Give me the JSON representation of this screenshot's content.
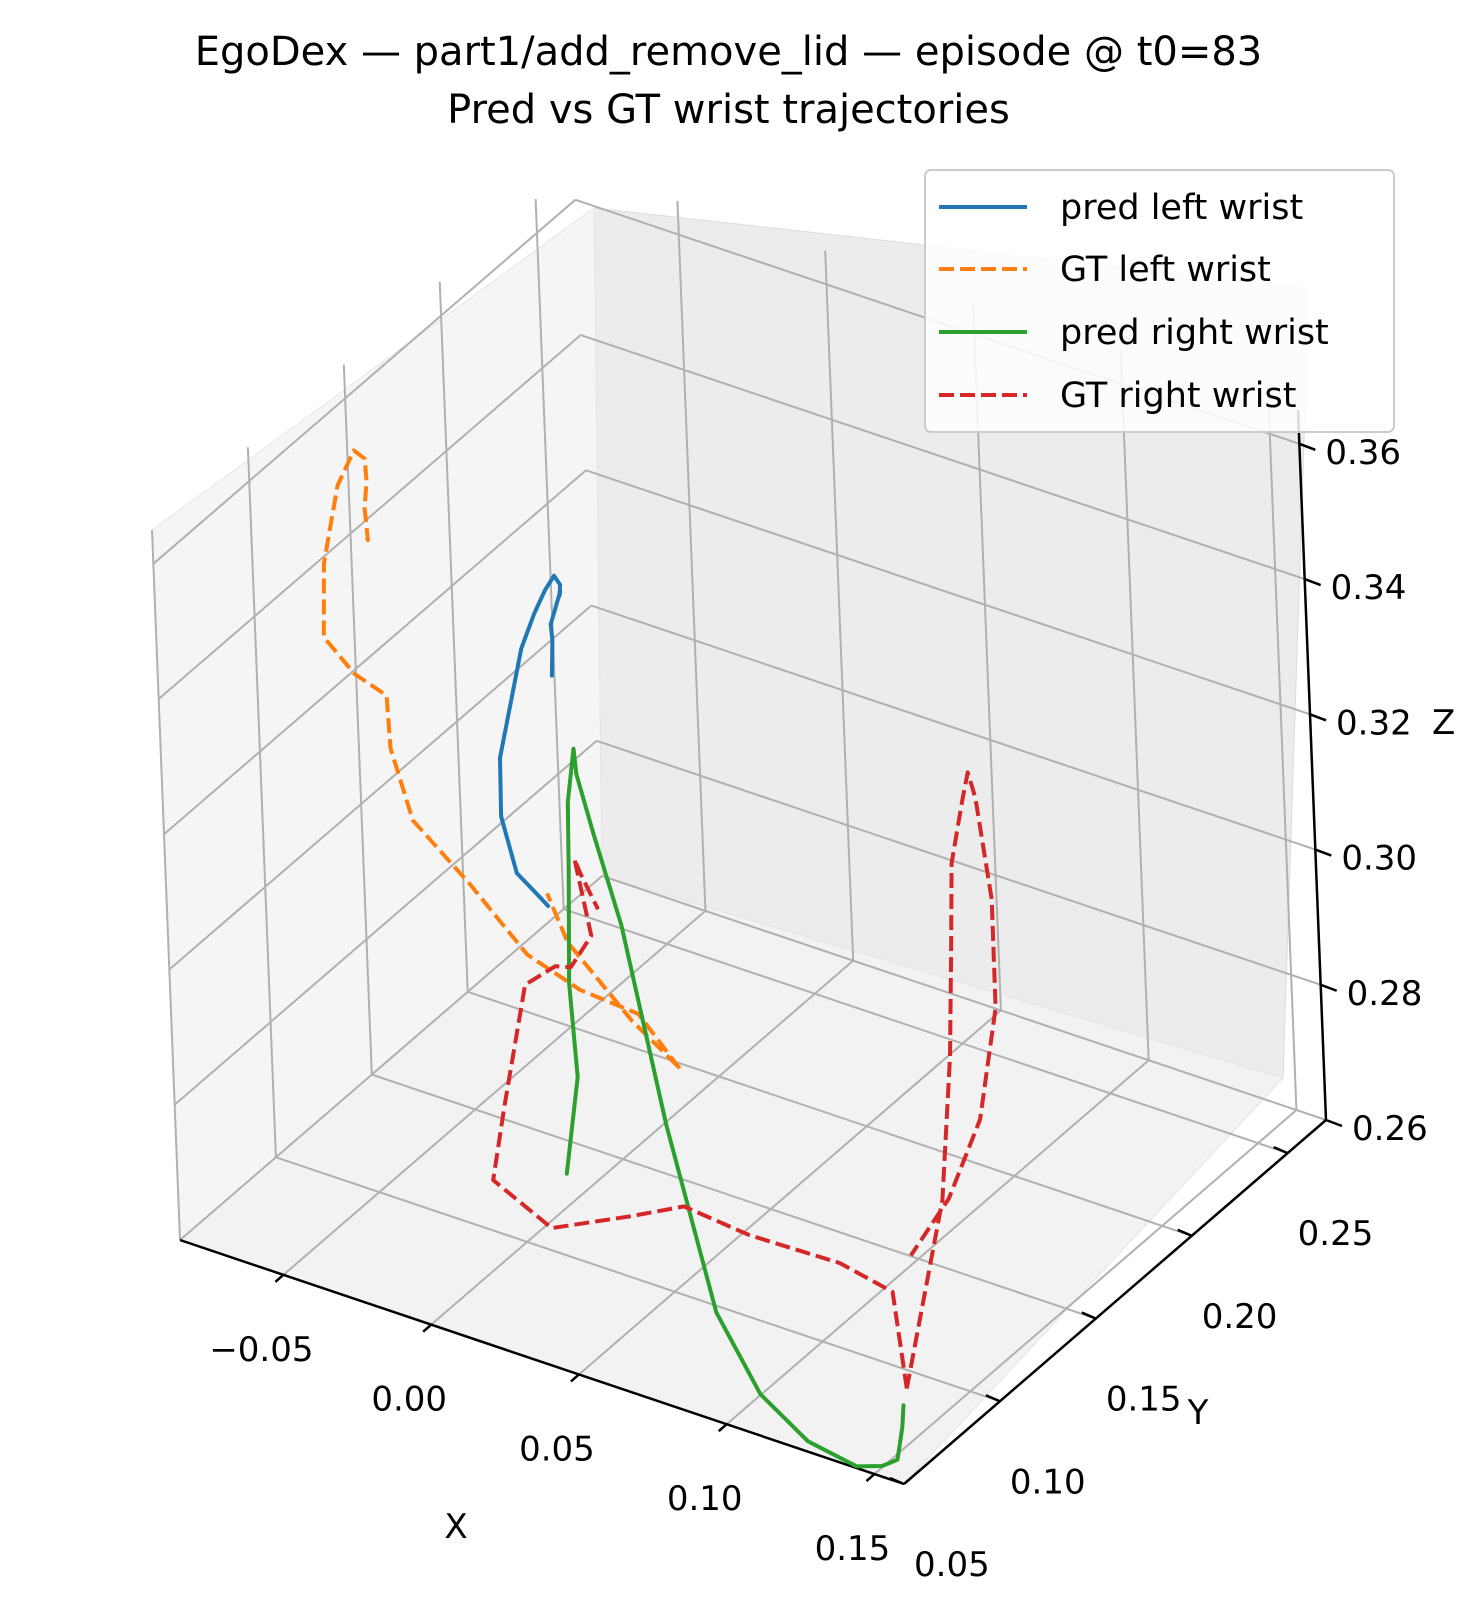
{
  "chart_data": {
    "type": "line",
    "projection": "3d",
    "title": "EgoDex — part1/add_remove_lid — episode @ t0=83",
    "subtitle": "Pred vs GT wrist trajectories",
    "xlabel": "X",
    "ylabel": "Y",
    "zlabel": "Z",
    "xticks": [
      "−0.05",
      "0.00",
      "0.05",
      "0.10",
      "0.15"
    ],
    "yticks": [
      "0.05",
      "0.10",
      "0.15",
      "0.20",
      "0.25"
    ],
    "zticks": [
      "0.26",
      "0.28",
      "0.30",
      "0.32",
      "0.34",
      "0.36"
    ],
    "xlim": [
      -0.085,
      0.16
    ],
    "ylim": [
      0.05,
      0.27
    ],
    "zlim": [
      0.26,
      0.365
    ],
    "grid": true,
    "legend_position": "top-right",
    "series": [
      {
        "name": "pred left wrist",
        "color": "#1f77b4",
        "dash": "solid",
        "points": [
          [
            0.008,
            0.112,
            0.342
          ],
          [
            0.01,
            0.11,
            0.348
          ],
          [
            0.011,
            0.108,
            0.351
          ],
          [
            0.012,
            0.112,
            0.355
          ],
          [
            0.011,
            0.113,
            0.354
          ],
          [
            0.01,
            0.115,
            0.355
          ],
          [
            0.006,
            0.118,
            0.355
          ],
          [
            0.0,
            0.122,
            0.351
          ],
          [
            -0.006,
            0.125,
            0.346
          ],
          [
            -0.011,
            0.125,
            0.34
          ],
          [
            -0.014,
            0.124,
            0.333
          ],
          [
            -0.015,
            0.118,
            0.325
          ],
          [
            -0.012,
            0.113,
            0.318
          ],
          [
            -0.004,
            0.108,
            0.312
          ],
          [
            0.004,
            0.107,
            0.31
          ],
          [
            0.007,
            0.107,
            0.309
          ]
        ]
      },
      {
        "name": "GT left wrist",
        "color": "#ff7f0e",
        "dash": "dashed",
        "points": [
          [
            -0.076,
            0.145,
            0.342
          ],
          [
            -0.073,
            0.141,
            0.343
          ],
          [
            -0.073,
            0.14,
            0.348
          ],
          [
            -0.072,
            0.14,
            0.352
          ],
          [
            -0.075,
            0.144,
            0.354
          ],
          [
            -0.08,
            0.146,
            0.354
          ],
          [
            -0.084,
            0.143,
            0.349
          ],
          [
            -0.085,
            0.136,
            0.339
          ],
          [
            -0.084,
            0.133,
            0.329
          ],
          [
            -0.076,
            0.136,
            0.324
          ],
          [
            -0.068,
            0.14,
            0.321
          ],
          [
            -0.066,
            0.138,
            0.314
          ],
          [
            -0.058,
            0.136,
            0.305
          ],
          [
            -0.04,
            0.137,
            0.298
          ],
          [
            -0.022,
            0.138,
            0.29
          ],
          [
            -0.005,
            0.139,
            0.287
          ],
          [
            0.014,
            0.14,
            0.286
          ],
          [
            0.03,
            0.135,
            0.282
          ],
          [
            0.036,
            0.128,
            0.284
          ],
          [
            0.03,
            0.113,
            0.294
          ],
          [
            0.02,
            0.097,
            0.308
          ],
          [
            0.017,
            0.092,
            0.316
          ]
        ]
      },
      {
        "name": "pred right wrist",
        "color": "#2ca02c",
        "dash": "solid",
        "points": [
          [
            0.02,
            0.092,
            0.275
          ],
          [
            0.023,
            0.095,
            0.289
          ],
          [
            0.022,
            0.094,
            0.303
          ],
          [
            0.022,
            0.096,
            0.319
          ],
          [
            0.024,
            0.094,
            0.33
          ],
          [
            0.025,
            0.095,
            0.335
          ],
          [
            0.026,
            0.095,
            0.338
          ],
          [
            0.028,
            0.093,
            0.335
          ],
          [
            0.033,
            0.093,
            0.327
          ],
          [
            0.04,
            0.095,
            0.314
          ],
          [
            0.052,
            0.096,
            0.286
          ],
          [
            0.066,
            0.097,
            0.26
          ],
          [
            0.08,
            0.097,
            0.25
          ],
          [
            0.095,
            0.098,
            0.245
          ],
          [
            0.11,
            0.1,
            0.243
          ],
          [
            0.118,
            0.101,
            0.244
          ],
          [
            0.12,
            0.106,
            0.244
          ],
          [
            0.118,
            0.112,
            0.247
          ],
          [
            0.116,
            0.116,
            0.249
          ]
        ]
      },
      {
        "name": "GT right wrist",
        "color": "#d62728",
        "dash": "dashed",
        "points": [
          [
            0.116,
            0.118,
            0.251
          ],
          [
            0.107,
            0.126,
            0.262
          ],
          [
            0.09,
            0.125,
            0.264
          ],
          [
            0.062,
            0.121,
            0.265
          ],
          [
            0.04,
            0.121,
            0.266
          ],
          [
            0.028,
            0.112,
            0.265
          ],
          [
            0.01,
            0.098,
            0.264
          ],
          [
            -0.004,
            0.09,
            0.271
          ],
          [
            -0.004,
            0.097,
            0.28
          ],
          [
            -0.004,
            0.11,
            0.295
          ],
          [
            0.008,
            0.108,
            0.3
          ],
          [
            0.016,
            0.104,
            0.302
          ],
          [
            0.018,
            0.112,
            0.305
          ],
          [
            0.016,
            0.108,
            0.317
          ],
          [
            0.019,
            0.106,
            0.316
          ],
          [
            0.022,
            0.11,
            0.31
          ]
        ],
        "points2": [
          [
            0.116,
            0.118,
            0.251
          ],
          [
            0.109,
            0.15,
            0.27
          ],
          [
            0.104,
            0.164,
            0.287
          ],
          [
            0.101,
            0.171,
            0.3
          ],
          [
            0.099,
            0.176,
            0.312
          ],
          [
            0.1,
            0.181,
            0.32
          ],
          [
            0.101,
            0.183,
            0.324
          ],
          [
            0.106,
            0.179,
            0.322
          ],
          [
            0.115,
            0.172,
            0.31
          ],
          [
            0.121,
            0.163,
            0.297
          ],
          [
            0.123,
            0.15,
            0.284
          ],
          [
            0.118,
            0.14,
            0.274
          ],
          [
            0.111,
            0.13,
            0.267
          ]
        ]
      }
    ]
  }
}
